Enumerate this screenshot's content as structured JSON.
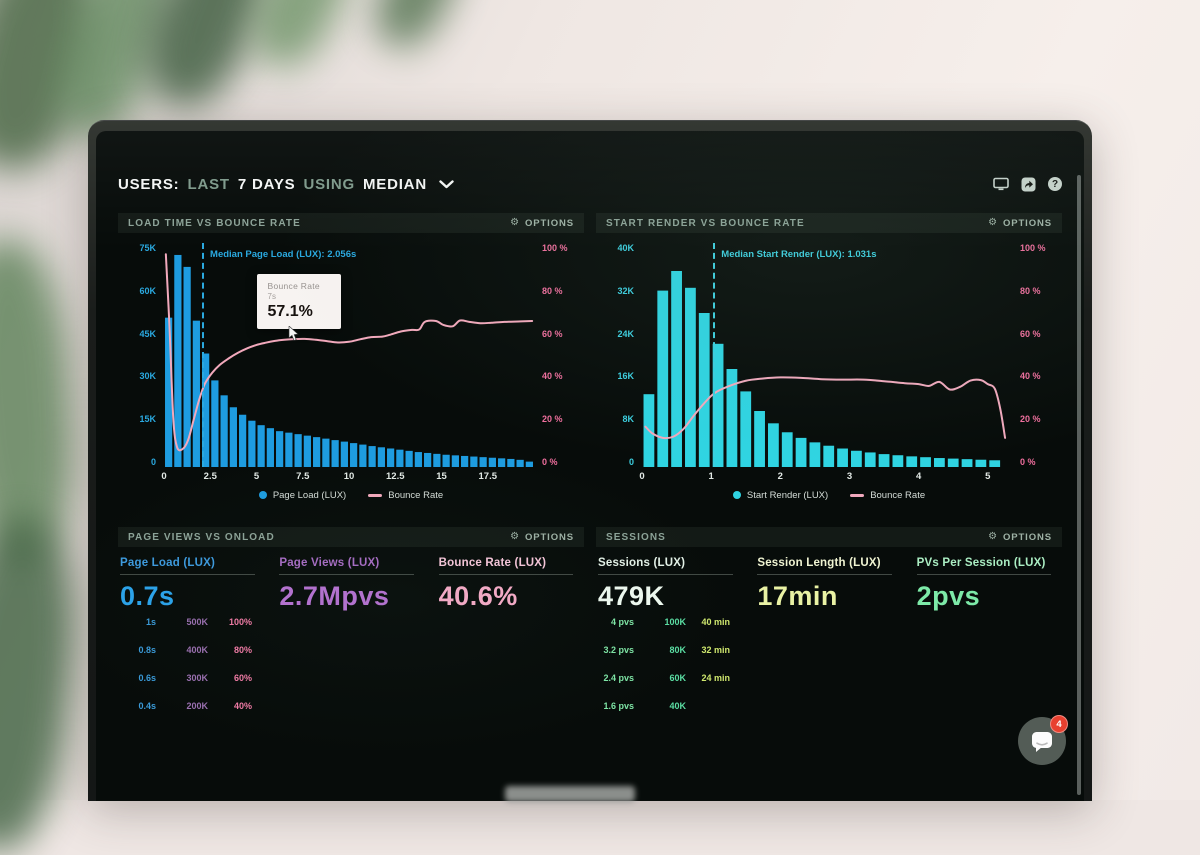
{
  "header": {
    "segments": [
      {
        "text": "USERS:",
        "style": "strong"
      },
      {
        "text": "LAST",
        "style": "muted"
      },
      {
        "text": "7 DAYS",
        "style": "strong"
      },
      {
        "text": "USING",
        "style": "muted"
      },
      {
        "text": "MEDIAN",
        "style": "strong"
      }
    ],
    "icons": [
      "display-icon",
      "share-icon",
      "help-icon"
    ]
  },
  "panels": {
    "load_time": {
      "title": "LOAD TIME VS BOUNCE RATE",
      "options": "OPTIONS",
      "median_label": "Median Page Load (LUX): 2.056s",
      "tooltip": {
        "title": "Bounce Rate",
        "sub": "7s",
        "value": "57.1%"
      },
      "legend": [
        {
          "label": "Page Load (LUX)",
          "color": "#1e9ce0"
        },
        {
          "label": "Bounce Rate",
          "color": "#f2a9bc"
        }
      ]
    },
    "start_render": {
      "title": "START RENDER VS BOUNCE RATE",
      "options": "OPTIONS",
      "median_label": "Median Start Render (LUX): 1.031s",
      "legend": [
        {
          "label": "Start Render (LUX)",
          "color": "#2fd4e2"
        },
        {
          "label": "Bounce Rate",
          "color": "#f0a9bd"
        }
      ]
    },
    "page_views": {
      "title": "PAGE VIEWS VS ONLOAD",
      "options": "OPTIONS",
      "stats": [
        {
          "label": "Page Load (LUX)",
          "value": "0.7s",
          "label_color": "#3d9ade",
          "value_color": "#2ba3ea"
        },
        {
          "label": "Page Views (LUX)",
          "value": "2.7Mpvs",
          "label_color": "#a76cc4",
          "value_color": "#b671d2"
        },
        {
          "label": "Bounce Rate (LUX)",
          "value": "40.6%",
          "label_color": "#f7c6da",
          "value_color": "#f7abc8"
        }
      ]
    },
    "sessions": {
      "title": "SESSIONS",
      "options": "OPTIONS",
      "stats": [
        {
          "label": "Sessions (LUX)",
          "value": "479K",
          "label_color": "#e4f2e8",
          "value_color": "#eef9f0"
        },
        {
          "label": "Session Length (LUX)",
          "value": "17min",
          "label_color": "#f0f4d2",
          "value_color": "#e9f2a4"
        },
        {
          "label": "PVs Per Session (LUX)",
          "value": "2pvs",
          "label_color": "#abeec3",
          "value_color": "#7deaa8"
        }
      ]
    }
  },
  "chat_widget": {
    "badge": "4"
  },
  "chart_data": [
    {
      "id": "load-time-vs-bounce-rate",
      "type": "bar+line",
      "title": "LOAD TIME VS BOUNCE RATE",
      "x": {
        "min": 0,
        "max": 20,
        "unit": "s",
        "ticks": [
          0,
          2.5,
          5,
          7.5,
          10,
          12.5,
          15,
          17.5
        ]
      },
      "y_left": {
        "label": "Page Load sessions",
        "max": 75000,
        "ticks": [
          "75K",
          "60K",
          "45K",
          "30K",
          "15K",
          "0"
        ]
      },
      "y_right": {
        "label": "Bounce Rate",
        "max": 100,
        "ticks": [
          "100 %",
          "80 %",
          "60 %",
          "40 %",
          "20 %",
          "0 %"
        ]
      },
      "y_left_color": "#2aa9e0",
      "y_right_color": "#f06f9e",
      "bars": {
        "name": "Page Load (LUX)",
        "color": "#1e9ce0",
        "x_start": 0.25,
        "bucket": 0.5,
        "values_k": [
          50,
          71,
          67,
          49,
          38,
          29,
          24,
          20,
          17.5,
          15.5,
          14,
          13,
          12,
          11.5,
          11,
          10.5,
          10,
          9.5,
          9,
          8.5,
          8,
          7.5,
          7,
          6.6,
          6.2,
          5.8,
          5.4,
          5,
          4.7,
          4.4,
          4.1,
          3.9,
          3.7,
          3.5,
          3.3,
          3.1,
          2.9,
          2.7,
          2.4,
          1.8
        ]
      },
      "line": {
        "name": "Bounce Rate",
        "color": "#f2a9bc",
        "points_pct": [
          [
            0.1,
            95
          ],
          [
            0.3,
            62
          ],
          [
            0.5,
            22
          ],
          [
            0.7,
            9
          ],
          [
            1.0,
            8
          ],
          [
            1.3,
            12
          ],
          [
            1.6,
            21
          ],
          [
            1.9,
            30
          ],
          [
            2.2,
            37
          ],
          [
            2.6,
            42
          ],
          [
            3.0,
            45.5
          ],
          [
            3.5,
            48.5
          ],
          [
            4.0,
            51
          ],
          [
            4.5,
            53
          ],
          [
            5.0,
            54.5
          ],
          [
            5.5,
            55.5
          ],
          [
            6.0,
            56.3
          ],
          [
            6.5,
            56.8
          ],
          [
            7.0,
            57.1
          ],
          [
            7.6,
            57.2
          ],
          [
            8.2,
            56.8
          ],
          [
            8.8,
            56.2
          ],
          [
            9.4,
            55.6
          ],
          [
            10.0,
            55.9
          ],
          [
            10.6,
            57
          ],
          [
            11.2,
            58
          ],
          [
            11.8,
            58.2
          ],
          [
            12.2,
            59
          ],
          [
            12.8,
            60.5
          ],
          [
            13.4,
            61.2
          ],
          [
            13.8,
            61.4
          ],
          [
            14.1,
            64.8
          ],
          [
            14.7,
            65.2
          ],
          [
            15.1,
            63.4
          ],
          [
            15.6,
            62.8
          ],
          [
            16.0,
            65.4
          ],
          [
            16.5,
            64.8
          ],
          [
            17.1,
            64.2
          ],
          [
            17.7,
            64.4
          ],
          [
            18.4,
            64.8
          ],
          [
            19.3,
            65
          ],
          [
            19.9,
            65.2
          ]
        ]
      },
      "median": {
        "x": 2.056,
        "label": "Median Page Load (LUX): 2.056s",
        "color": "#2aa9e0"
      },
      "tooltip": {
        "at_x_s": 7,
        "bounce_rate_pct": 57.1
      }
    },
    {
      "id": "start-render-vs-bounce-rate",
      "type": "bar+line",
      "title": "START RENDER VS BOUNCE RATE",
      "x": {
        "min": 0,
        "max": 5.35,
        "unit": "s",
        "ticks": [
          0,
          1,
          2,
          3,
          4,
          5
        ]
      },
      "y_left": {
        "label": "Start Render sessions",
        "max": 40000,
        "ticks": [
          "40K",
          "32K",
          "24K",
          "16K",
          "8K",
          "0"
        ]
      },
      "y_right": {
        "label": "Bounce Rate",
        "max": 100,
        "ticks": [
          "100 %",
          "80 %",
          "60 %",
          "40 %",
          "20 %",
          "0 %"
        ]
      },
      "y_left_color": "#3ccfe0",
      "y_right_color": "#f06f9e",
      "bars": {
        "name": "Start Render (LUX)",
        "color": "#2fd4e2",
        "x_start": 0.1,
        "bucket": 0.2,
        "values_k": [
          13,
          31.5,
          35,
          32,
          27.5,
          22,
          17.5,
          13.5,
          10,
          7.8,
          6.2,
          5.2,
          4.4,
          3.8,
          3.3,
          2.9,
          2.6,
          2.3,
          2.1,
          1.9,
          1.75,
          1.6,
          1.5,
          1.4,
          1.3,
          1.2
        ]
      },
      "line": {
        "name": "Bounce Rate",
        "color": "#f0a9bd",
        "points_pct": [
          [
            0.05,
            18
          ],
          [
            0.15,
            15
          ],
          [
            0.3,
            13
          ],
          [
            0.45,
            13.5
          ],
          [
            0.6,
            17
          ],
          [
            0.75,
            23
          ],
          [
            0.9,
            28.5
          ],
          [
            1.05,
            33
          ],
          [
            1.25,
            36
          ],
          [
            1.5,
            38.5
          ],
          [
            1.75,
            39.5
          ],
          [
            2.0,
            40
          ],
          [
            2.3,
            39.8
          ],
          [
            2.6,
            39.2
          ],
          [
            2.9,
            39
          ],
          [
            3.2,
            39
          ],
          [
            3.5,
            38.3
          ],
          [
            3.8,
            37.4
          ],
          [
            4.0,
            37
          ],
          [
            4.15,
            36.2
          ],
          [
            4.3,
            38
          ],
          [
            4.45,
            34.6
          ],
          [
            4.6,
            35.8
          ],
          [
            4.75,
            38.6
          ],
          [
            4.9,
            38.8
          ],
          [
            5.0,
            37
          ],
          [
            5.1,
            35
          ],
          [
            5.18,
            26
          ],
          [
            5.25,
            13
          ]
        ]
      },
      "median": {
        "x": 1.031,
        "label": "Median Start Render (LUX): 1.031s",
        "color": "#3ccfe0"
      }
    },
    {
      "id": "page-views-vs-onload",
      "type": "line",
      "title": "PAGE VIEWS VS ONLOAD",
      "summary": {
        "page_load": "0.7s",
        "page_views": "2.7Mpvs",
        "bounce_rate": "40.6%"
      },
      "y_left_ticks": [
        "1s",
        "0.8s",
        "0.6s",
        "0.4s"
      ],
      "y_left_color": "#3a9ad8",
      "y_right_ticks": [
        [
          "500K",
          "100%"
        ],
        [
          "400K",
          "80%"
        ],
        [
          "300K",
          "60%"
        ],
        [
          "200K",
          "40%"
        ]
      ],
      "y_right_colors": [
        "#9a6fb0",
        "#f27ba6"
      ],
      "series": [
        {
          "name": "Page Views",
          "color": "#a862c8",
          "points_pct": [
            [
              0,
              16
            ],
            [
              8,
              19
            ],
            [
              16,
              22
            ],
            [
              24,
              25
            ],
            [
              32,
              29
            ],
            [
              36,
              33
            ],
            [
              40,
              43
            ],
            [
              44,
              56
            ],
            [
              47,
              66
            ],
            [
              50,
              71
            ],
            [
              54,
              72.5
            ],
            [
              60,
              72.5
            ],
            [
              64,
              70
            ],
            [
              67,
              59
            ],
            [
              70,
              45
            ],
            [
              73,
              31
            ],
            [
              76,
              22
            ],
            [
              80,
              19
            ],
            [
              88,
              17.5
            ],
            [
              100,
              17
            ]
          ]
        },
        {
          "name": "Page Load",
          "color": "#2f8fe0",
          "points_pct": [
            [
              0,
              57
            ],
            [
              6,
              52
            ],
            [
              11,
              46
            ],
            [
              15,
              43.5
            ],
            [
              19,
              43.5
            ],
            [
              25,
              47
            ],
            [
              29,
              51
            ],
            [
              33,
              54
            ],
            [
              37,
              51
            ],
            [
              40,
              44
            ],
            [
              43,
              37
            ],
            [
              46,
              32
            ],
            [
              49,
              30.5
            ],
            [
              60,
              30.5
            ],
            [
              63,
              32
            ],
            [
              66,
              38
            ],
            [
              70,
              48
            ],
            [
              74,
              56
            ],
            [
              78,
              60.5
            ],
            [
              83,
              61.5
            ],
            [
              88,
              58.5
            ],
            [
              94,
              53
            ],
            [
              100,
              47
            ]
          ]
        },
        {
          "name": "Bounce Rate",
          "color": "#efa9c0",
          "points_pct": [
            [
              0,
              85
            ],
            [
              15,
              85
            ],
            [
              25,
              84
            ],
            [
              35,
              81
            ],
            [
              45,
              77
            ],
            [
              52,
              74
            ],
            [
              58,
              72
            ],
            [
              63,
              71.5
            ],
            [
              68,
              74
            ],
            [
              74,
              79
            ],
            [
              80,
              85
            ],
            [
              87,
              90
            ],
            [
              94,
              93.5
            ],
            [
              100,
              95
            ]
          ]
        }
      ]
    },
    {
      "id": "sessions",
      "type": "line",
      "title": "SESSIONS",
      "summary": {
        "sessions": "479K",
        "session_length": "17min",
        "pvs_per_session": "2pvs"
      },
      "y_left_ticks": [
        "4 pvs",
        "3.2 pvs",
        "2.4 pvs",
        "1.6 pvs"
      ],
      "y_left_color": "#7fe6a6",
      "y_right_ticks": [
        [
          "100K",
          "40 min"
        ],
        [
          "80K",
          "32 min"
        ],
        [
          "60K",
          "24 min"
        ],
        [
          "40K",
          ""
        ]
      ],
      "y_right_colors": [
        "#5bdfa4",
        "#cfe86e"
      ],
      "series": [
        {
          "name": "Sessions",
          "color": "#4fd6a8",
          "points_pct": [
            [
              0,
              30
            ],
            [
              12,
              32
            ],
            [
              24,
              34.5
            ],
            [
              32,
              36.5
            ],
            [
              38,
              40
            ],
            [
              43,
              48
            ],
            [
              47,
              56
            ],
            [
              51,
              63
            ],
            [
              55,
              69
            ],
            [
              58,
              70
            ],
            [
              62,
              66
            ],
            [
              66,
              57
            ],
            [
              70,
              47
            ],
            [
              74,
              40
            ],
            [
              78,
              37
            ],
            [
              84,
              36
            ],
            [
              92,
              37
            ],
            [
              100,
              38.5
            ]
          ]
        },
        {
          "name": "PVs Per Session",
          "color": "#a8ecb8",
          "points_pct": [
            [
              0,
              71
            ],
            [
              46,
              71
            ],
            [
              52,
              73
            ],
            [
              57,
              77
            ],
            [
              62,
              84
            ],
            [
              67,
              93
            ],
            [
              72,
              103
            ],
            [
              76,
              108
            ],
            [
              80,
              104
            ],
            [
              85,
              85
            ],
            [
              90,
              62
            ],
            [
              95,
              47
            ],
            [
              100,
              41
            ]
          ]
        },
        {
          "name": "Session Length",
          "color": "#dde98a",
          "points_pct": [
            [
              0,
              81
            ],
            [
              7,
              79
            ],
            [
              13,
              78
            ],
            [
              20,
              80
            ],
            [
              28,
              85
            ],
            [
              35,
              91
            ],
            [
              42,
              97
            ],
            [
              48,
              102
            ],
            [
              53,
              105
            ],
            [
              57,
              104
            ],
            [
              61,
              97
            ],
            [
              66,
              86
            ],
            [
              71,
              72
            ],
            [
              76,
              57
            ],
            [
              81,
              42
            ],
            [
              86,
              27
            ],
            [
              90,
              15
            ],
            [
              93,
              6
            ]
          ]
        }
      ]
    }
  ]
}
